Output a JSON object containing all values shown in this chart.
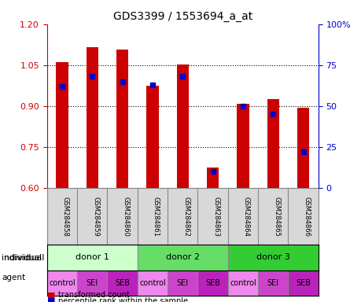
{
  "title": "GDS3399 / 1553694_a_at",
  "samples": [
    "GSM284858",
    "GSM284859",
    "GSM284860",
    "GSM284861",
    "GSM284862",
    "GSM284863",
    "GSM284864",
    "GSM284865",
    "GSM284866"
  ],
  "transformed_count": [
    1.062,
    1.115,
    1.108,
    0.975,
    1.052,
    0.675,
    0.908,
    0.925,
    0.895
  ],
  "percentile_rank": [
    62,
    68,
    65,
    63,
    68,
    10,
    50,
    45,
    22
  ],
  "ylim_left": [
    0.6,
    1.2
  ],
  "ylim_right": [
    0,
    100
  ],
  "yticks_left": [
    0.6,
    0.75,
    0.9,
    1.05,
    1.2
  ],
  "yticks_right": [
    0,
    25,
    50,
    75,
    100
  ],
  "bar_color": "#cc0000",
  "marker_color": "#0000cc",
  "bar_width": 0.4,
  "individual_labels": [
    "donor 1",
    "donor 2",
    "donor 3"
  ],
  "individual_colors": [
    "#ccffcc",
    "#66dd66",
    "#33cc33"
  ],
  "agent_labels": [
    "control",
    "SEI",
    "SEB",
    "control",
    "SEI",
    "SEB",
    "control",
    "SEI",
    "SEB"
  ],
  "agent_colors": [
    "#ee88ee",
    "#dd44dd",
    "#cc33cc",
    "#ee88ee",
    "#dd44dd",
    "#cc33cc",
    "#ee88ee",
    "#dd44dd",
    "#cc33cc"
  ],
  "background_color": "#ffffff",
  "grid_color": "#000000",
  "label_left_color": "#cc0000",
  "label_right_color": "#0000cc"
}
